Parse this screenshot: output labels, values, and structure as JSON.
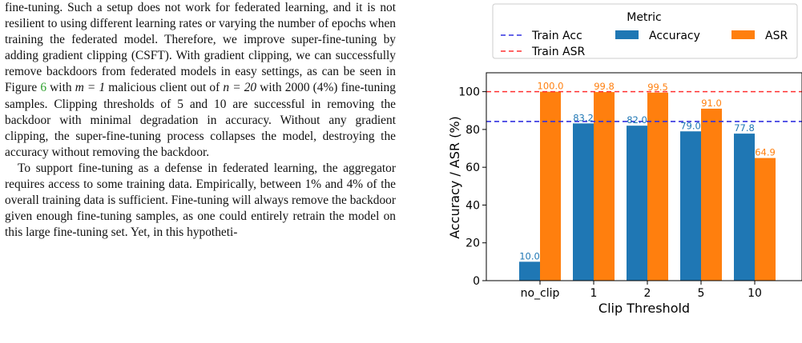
{
  "paragraph1": {
    "before_ref": "fine-tuning. Such a setup does not work for federated learning, and it is not resilient to using different learning rates or varying the number of epochs when training the federated model. Therefore, we improve super-fine-tuning by adding gradient clipping (CSFT). With gradient clipping, we can successfully remove backdoors from federated models in easy settings, as can be seen in Figure",
    "figure_ref": "6",
    "after_ref_1": "with",
    "m_expr": "m = 1",
    "after_ref_2": "malicious client out of",
    "n_expr": "n = 20",
    "after_ref_3": "with 2000 (4%) fine-tuning samples. Clipping thresholds of 5 and 10 are successful in removing the backdoor with minimal degradation in accuracy. Without any gradient clipping, the super-fine-tuning process collapses the model, destroying the accuracy without removing the backdoor."
  },
  "paragraph2": "To support fine-tuning as a defense in federated learning, the aggregator requires access to some training data. Empirically, between 1% and 4% of the overall training data is sufficient. Fine-tuning will always remove the backdoor given enough fine-tuning samples, as one could entirely retrain the model on this large fine-tuning set. Yet, in this hypotheti-",
  "chart_data": {
    "type": "bar",
    "categories": [
      "no_clip",
      "1",
      "2",
      "5",
      "10"
    ],
    "series": [
      {
        "name": "Accuracy",
        "values": [
          10.0,
          83.2,
          82.0,
          79.0,
          77.8
        ],
        "labels": [
          "10.0",
          "83.2",
          "82.0",
          "79.0",
          "77.8"
        ],
        "color": "#1f77b4"
      },
      {
        "name": "ASR",
        "values": [
          100.0,
          99.8,
          99.5,
          91.0,
          64.9
        ],
        "labels": [
          "100.0",
          "99.8",
          "99.5",
          "91.0",
          "64.9"
        ],
        "color": "#ff7f0e"
      }
    ],
    "reference_lines": [
      {
        "name": "Train Acc",
        "value": 84.2,
        "color": "#3030e0",
        "style": "dashed"
      },
      {
        "name": "Train ASR",
        "value": 100.0,
        "color": "#ff3030",
        "style": "dashed"
      }
    ],
    "legend_title": "Metric",
    "legend_placement": "top",
    "xlabel": "Clip Threshold",
    "ylabel": "Accuracy / ASR (%)",
    "ylim": [
      0,
      110
    ],
    "yticks": [
      "0",
      "20",
      "40",
      "60",
      "80",
      "100"
    ],
    "grid": false
  }
}
